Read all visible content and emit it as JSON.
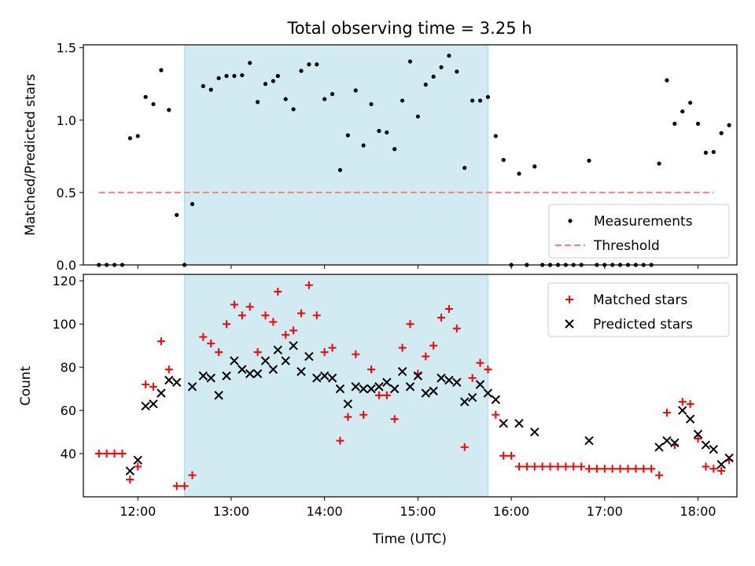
{
  "figure": {
    "title": "Total observing time = 3.25 h",
    "xlabel": "Time (UTC)"
  },
  "colors": {
    "shade": "#add8e6",
    "measure": "#000000",
    "threshold": "#ff7f7f",
    "matched": "#ff0000",
    "predicted": "#000000"
  },
  "chart_data": [
    {
      "type": "scatter",
      "panel": "top",
      "ylabel": "Matched/Predicted stars",
      "xlim": [
        "11:25",
        "18:25"
      ],
      "ylim": [
        0,
        1.52
      ],
      "yticks": [
        0,
        0.5,
        1.0,
        1.5
      ],
      "ytick_labels": [
        "0.0",
        "0.5",
        "1.0",
        "1.5"
      ],
      "xticks": [
        "12:00",
        "13:00",
        "14:00",
        "15:00",
        "16:00",
        "17:00",
        "18:00"
      ],
      "shaded_interval": [
        "12:30",
        "15:45"
      ],
      "legend_position": "lower right",
      "series": [
        {
          "name": "Measurements",
          "marker": "dot",
          "points": [
            [
              "11:35",
              0
            ],
            [
              "11:40",
              0
            ],
            [
              "11:45",
              0
            ],
            [
              "11:50",
              0
            ],
            [
              "11:55",
              0.875
            ],
            [
              "12:00",
              0.89
            ],
            [
              "12:05",
              1.16
            ],
            [
              "12:10",
              1.11
            ],
            [
              "12:15",
              1.345
            ],
            [
              "12:20",
              1.07
            ],
            [
              "12:25",
              0.345
            ],
            [
              "12:30",
              0
            ],
            [
              "12:35",
              0.42
            ],
            [
              "12:42",
              1.235
            ],
            [
              "12:47",
              1.21
            ],
            [
              "12:52",
              1.29
            ],
            [
              "12:57",
              1.305
            ],
            [
              "13:02",
              1.305
            ],
            [
              "13:07",
              1.31
            ],
            [
              "13:12",
              1.395
            ],
            [
              "13:17",
              1.125
            ],
            [
              "13:22",
              1.25
            ],
            [
              "13:27",
              1.27
            ],
            [
              "13:30",
              1.305
            ],
            [
              "13:35",
              1.145
            ],
            [
              "13:40",
              1.075
            ],
            [
              "13:45",
              1.34
            ],
            [
              "13:50",
              1.385
            ],
            [
              "13:55",
              1.385
            ],
            [
              "14:00",
              1.145
            ],
            [
              "14:05",
              1.18
            ],
            [
              "14:10",
              0.655
            ],
            [
              "14:15",
              0.895
            ],
            [
              "14:20",
              1.205
            ],
            [
              "14:25",
              0.825
            ],
            [
              "14:30",
              1.11
            ],
            [
              "14:35",
              0.925
            ],
            [
              "14:40",
              0.915
            ],
            [
              "14:45",
              0.8
            ],
            [
              "14:50",
              1.135
            ],
            [
              "14:55",
              1.405
            ],
            [
              "15:00",
              1.025
            ],
            [
              "15:05",
              1.245
            ],
            [
              "15:10",
              1.3
            ],
            [
              "15:15",
              1.365
            ],
            [
              "15:20",
              1.445
            ],
            [
              "15:25",
              1.335
            ],
            [
              "15:30",
              0.67
            ],
            [
              "15:35",
              1.135
            ],
            [
              "15:40",
              1.135
            ],
            [
              "15:45",
              1.16
            ],
            [
              "15:50",
              0.89
            ],
            [
              "15:55",
              0.725
            ],
            [
              "16:00",
              0
            ],
            [
              "16:05",
              0.63
            ],
            [
              "16:10",
              0
            ],
            [
              "16:15",
              0.68
            ],
            [
              "16:20",
              0
            ],
            [
              "16:25",
              0
            ],
            [
              "16:30",
              0
            ],
            [
              "16:35",
              0
            ],
            [
              "16:40",
              0
            ],
            [
              "16:45",
              0
            ],
            [
              "16:50",
              0.72
            ],
            [
              "16:55",
              0
            ],
            [
              "17:00",
              0
            ],
            [
              "17:05",
              0
            ],
            [
              "17:10",
              0
            ],
            [
              "17:15",
              0
            ],
            [
              "17:20",
              0
            ],
            [
              "17:25",
              0
            ],
            [
              "17:30",
              0
            ],
            [
              "17:35",
              0.7
            ],
            [
              "17:40",
              1.275
            ],
            [
              "17:45",
              0.975
            ],
            [
              "17:50",
              1.06
            ],
            [
              "17:55",
              1.12
            ],
            [
              "18:00",
              0.975
            ],
            [
              "18:05",
              0.775
            ],
            [
              "18:10",
              0.78
            ],
            [
              "18:15",
              0.91
            ],
            [
              "18:20",
              0.965
            ]
          ]
        },
        {
          "name": "Threshold",
          "marker": "dashed-line",
          "x": [
            "11:35",
            "18:10"
          ],
          "y": [
            0.5,
            0.5
          ]
        }
      ]
    },
    {
      "type": "scatter",
      "panel": "bottom",
      "ylabel": "Count",
      "xlim": [
        "11:25",
        "18:25"
      ],
      "ylim": [
        20,
        123
      ],
      "yticks": [
        40,
        60,
        80,
        100,
        120
      ],
      "ytick_labels": [
        "40",
        "60",
        "80",
        "100",
        "120"
      ],
      "xticks": [
        "12:00",
        "13:00",
        "14:00",
        "15:00",
        "16:00",
        "17:00",
        "18:00"
      ],
      "shaded_interval": [
        "12:30",
        "15:45"
      ],
      "legend_position": "top-right",
      "series": [
        {
          "name": "Matched stars",
          "marker": "plus",
          "points": [
            [
              "11:35",
              40
            ],
            [
              "11:40",
              40
            ],
            [
              "11:45",
              40
            ],
            [
              "11:50",
              40
            ],
            [
              "11:55",
              28
            ],
            [
              "12:00",
              34
            ],
            [
              "12:05",
              72
            ],
            [
              "12:10",
              71
            ],
            [
              "12:15",
              92
            ],
            [
              "12:20",
              79
            ],
            [
              "12:25",
              25
            ],
            [
              "12:30",
              25
            ],
            [
              "12:35",
              30
            ],
            [
              "12:42",
              94
            ],
            [
              "12:47",
              91
            ],
            [
              "12:52",
              87
            ],
            [
              "12:57",
              100
            ],
            [
              "13:02",
              109
            ],
            [
              "13:07",
              104
            ],
            [
              "13:12",
              108
            ],
            [
              "13:17",
              87
            ],
            [
              "13:22",
              104
            ],
            [
              "13:27",
              101
            ],
            [
              "13:30",
              115
            ],
            [
              "13:35",
              95
            ],
            [
              "13:40",
              97
            ],
            [
              "13:45",
              105
            ],
            [
              "13:50",
              118
            ],
            [
              "13:55",
              104
            ],
            [
              "14:00",
              87
            ],
            [
              "14:05",
              89
            ],
            [
              "14:10",
              46
            ],
            [
              "14:15",
              57
            ],
            [
              "14:20",
              86
            ],
            [
              "14:25",
              58
            ],
            [
              "14:30",
              79
            ],
            [
              "14:35",
              67
            ],
            [
              "14:40",
              67
            ],
            [
              "14:45",
              56
            ],
            [
              "14:50",
              89
            ],
            [
              "14:55",
              100
            ],
            [
              "15:00",
              77
            ],
            [
              "15:05",
              85
            ],
            [
              "15:10",
              90
            ],
            [
              "15:15",
              103
            ],
            [
              "15:20",
              107
            ],
            [
              "15:25",
              98
            ],
            [
              "15:30",
              43
            ],
            [
              "15:35",
              75
            ],
            [
              "15:40",
              82
            ],
            [
              "15:45",
              79
            ],
            [
              "15:50",
              58
            ],
            [
              "15:55",
              39
            ],
            [
              "16:00",
              39
            ],
            [
              "16:05",
              34
            ],
            [
              "16:10",
              34
            ],
            [
              "16:15",
              34
            ],
            [
              "16:20",
              34
            ],
            [
              "16:25",
              34
            ],
            [
              "16:30",
              34
            ],
            [
              "16:35",
              34
            ],
            [
              "16:40",
              34
            ],
            [
              "16:45",
              34
            ],
            [
              "16:50",
              33
            ],
            [
              "16:55",
              33
            ],
            [
              "17:00",
              33
            ],
            [
              "17:05",
              33
            ],
            [
              "17:10",
              33
            ],
            [
              "17:15",
              33
            ],
            [
              "17:20",
              33
            ],
            [
              "17:25",
              33
            ],
            [
              "17:30",
              33
            ],
            [
              "17:35",
              30
            ],
            [
              "17:40",
              59
            ],
            [
              "17:45",
              44
            ],
            [
              "17:50",
              64
            ],
            [
              "17:55",
              63
            ],
            [
              "18:00",
              47
            ],
            [
              "18:05",
              34
            ],
            [
              "18:10",
              33
            ],
            [
              "18:15",
              32
            ],
            [
              "18:20",
              37
            ]
          ]
        },
        {
          "name": "Predicted stars",
          "marker": "x",
          "points": [
            [
              "11:55",
              32
            ],
            [
              "12:00",
              37
            ],
            [
              "12:05",
              62
            ],
            [
              "12:10",
              63
            ],
            [
              "12:15",
              68
            ],
            [
              "12:20",
              74
            ],
            [
              "12:25",
              73
            ],
            [
              "12:35",
              71
            ],
            [
              "12:42",
              76
            ],
            [
              "12:47",
              75
            ],
            [
              "12:52",
              67
            ],
            [
              "12:57",
              76
            ],
            [
              "13:02",
              83
            ],
            [
              "13:07",
              79
            ],
            [
              "13:12",
              77
            ],
            [
              "13:17",
              77
            ],
            [
              "13:22",
              83
            ],
            [
              "13:27",
              79
            ],
            [
              "13:30",
              88
            ],
            [
              "13:35",
              83
            ],
            [
              "13:40",
              90
            ],
            [
              "13:45",
              78
            ],
            [
              "13:50",
              85
            ],
            [
              "13:55",
              75
            ],
            [
              "14:00",
              76
            ],
            [
              "14:05",
              75
            ],
            [
              "14:10",
              70
            ],
            [
              "14:15",
              63
            ],
            [
              "14:20",
              71
            ],
            [
              "14:25",
              70
            ],
            [
              "14:30",
              70
            ],
            [
              "14:35",
              71
            ],
            [
              "14:40",
              73
            ],
            [
              "14:45",
              70
            ],
            [
              "14:50",
              78
            ],
            [
              "14:55",
              71
            ],
            [
              "15:00",
              76
            ],
            [
              "15:05",
              68
            ],
            [
              "15:10",
              69
            ],
            [
              "15:15",
              75
            ],
            [
              "15:20",
              74
            ],
            [
              "15:25",
              73
            ],
            [
              "15:30",
              64
            ],
            [
              "15:35",
              66
            ],
            [
              "15:40",
              72
            ],
            [
              "15:45",
              68
            ],
            [
              "15:50",
              65
            ],
            [
              "15:55",
              54
            ],
            [
              "16:05",
              54
            ],
            [
              "16:15",
              50
            ],
            [
              "16:50",
              46
            ],
            [
              "17:35",
              43
            ],
            [
              "17:40",
              46
            ],
            [
              "17:45",
              45
            ],
            [
              "17:50",
              60
            ],
            [
              "17:55",
              56
            ],
            [
              "18:00",
              49
            ],
            [
              "18:05",
              44
            ],
            [
              "18:10",
              42
            ],
            [
              "18:15",
              35
            ],
            [
              "18:20",
              38
            ]
          ]
        }
      ]
    }
  ]
}
